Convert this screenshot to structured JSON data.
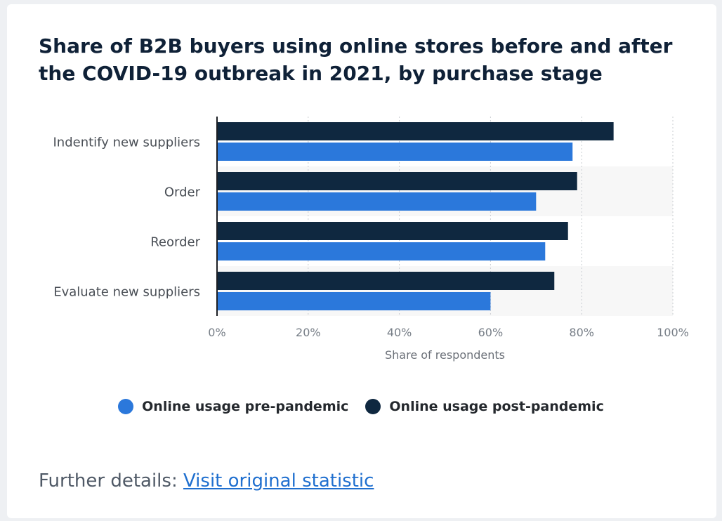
{
  "chart_data": {
    "type": "bar",
    "orientation": "horizontal",
    "title": "Share of B2B buyers using online stores before and after the COVID-19 outbreak in 2021, by purchase stage",
    "categories": [
      "Indentify new suppliers",
      "Order",
      "Reorder",
      "Evaluate new suppliers"
    ],
    "series": [
      {
        "name": "Online usage post-pandemic",
        "values": [
          87,
          79,
          77,
          74
        ],
        "color": "#0f2840"
      },
      {
        "name": "Online usage pre-pandemic",
        "values": [
          78,
          70,
          72,
          60
        ],
        "color": "#2b78db"
      }
    ],
    "xlabel": "Share of respondents",
    "xlim": [
      0,
      100
    ],
    "xticks": [
      "0%",
      "20%",
      "40%",
      "60%",
      "80%",
      "100%"
    ],
    "grid": true,
    "legend_position": "bottom"
  },
  "legend": {
    "items": [
      {
        "label": "Online usage pre-pandemic",
        "color": "#2b78db"
      },
      {
        "label": "Online usage post-pandemic",
        "color": "#0f2840"
      }
    ]
  },
  "footer": {
    "prefix": "Further details: ",
    "link_label": "Visit original statistic"
  }
}
